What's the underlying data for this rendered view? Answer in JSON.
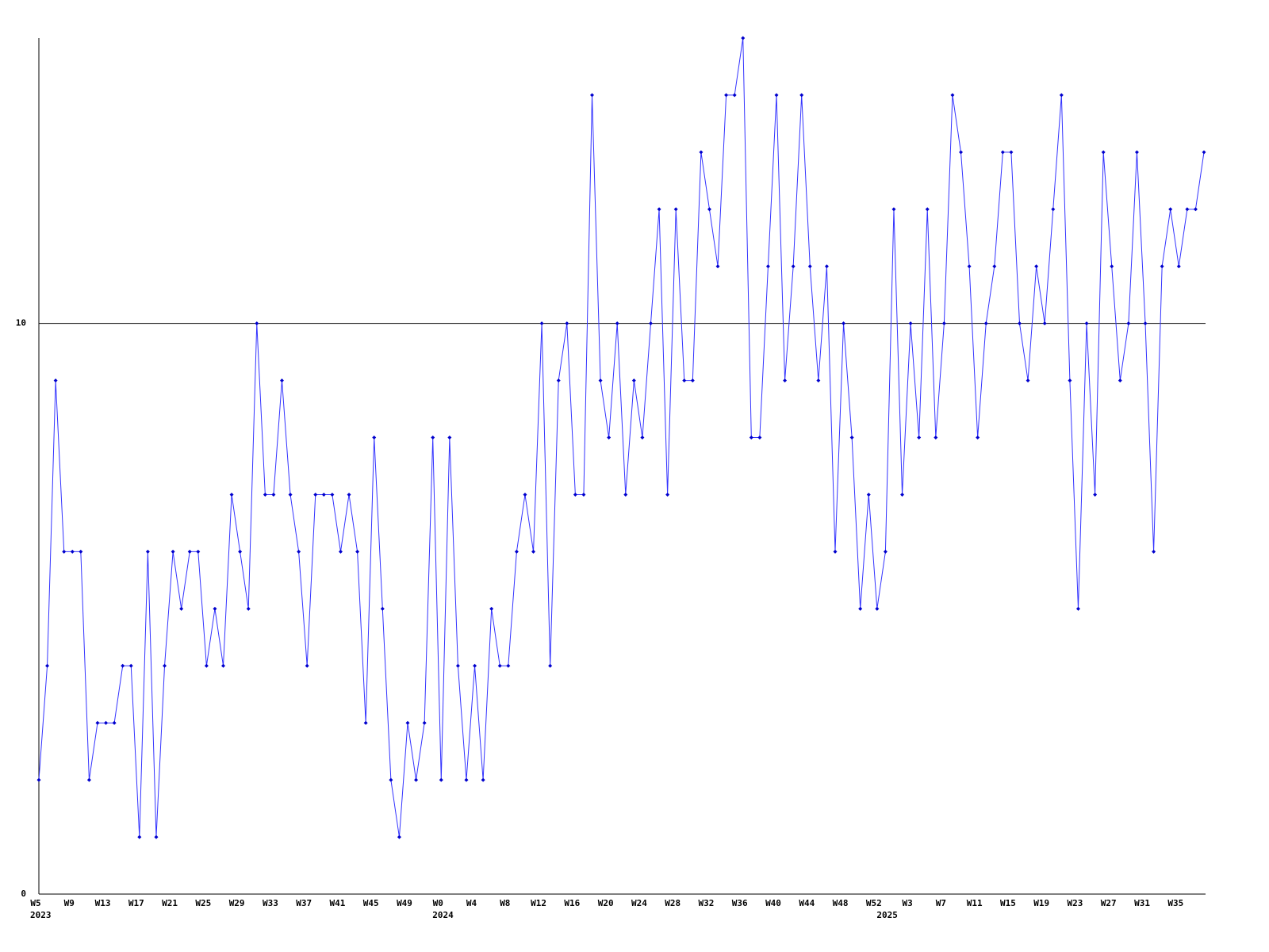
{
  "chart_data": {
    "type": "line",
    "categories": [
      "W5",
      null,
      null,
      null,
      "W9",
      null,
      null,
      null,
      "W13",
      null,
      null,
      null,
      "W17",
      null,
      null,
      null,
      "W21",
      null,
      null,
      null,
      "W25",
      null,
      null,
      null,
      "W29",
      null,
      null,
      null,
      "W33",
      null,
      null,
      null,
      "W37",
      null,
      null,
      null,
      "W41",
      null,
      null,
      null,
      "W45",
      null,
      null,
      null,
      "W49",
      null,
      null,
      null,
      "W0",
      null,
      null,
      null,
      "W4",
      null,
      null,
      null,
      "W8",
      null,
      null,
      null,
      "W12",
      null,
      null,
      null,
      "W16",
      null,
      null,
      null,
      "W20",
      null,
      null,
      null,
      "W24",
      null,
      null,
      null,
      "W28",
      null,
      null,
      null,
      "W32",
      null,
      null,
      null,
      "W36",
      null,
      null,
      null,
      "W40",
      null,
      null,
      null,
      "W44",
      null,
      null,
      null,
      "W48",
      null,
      null,
      null,
      "W52",
      null,
      null,
      null,
      "W3",
      null,
      null,
      null,
      "W7",
      null,
      null,
      null,
      "W11",
      null,
      null,
      null,
      "W15",
      null,
      null,
      null,
      "W19",
      null,
      null,
      null,
      "W23",
      null,
      null,
      null,
      "W27",
      null,
      null,
      null,
      "W31",
      null,
      null,
      null,
      "W35",
      null,
      null,
      null
    ],
    "category_years": [
      "2023",
      null,
      null,
      null,
      null,
      null,
      null,
      null,
      null,
      null,
      null,
      null,
      null,
      null,
      null,
      null,
      null,
      null,
      null,
      null,
      null,
      null,
      null,
      null,
      null,
      null,
      null,
      null,
      null,
      null,
      null,
      null,
      null,
      null,
      null,
      null,
      null,
      null,
      null,
      null,
      null,
      null,
      null,
      null,
      null,
      null,
      null,
      null,
      "2024",
      null,
      null,
      null,
      null,
      null,
      null,
      null,
      null,
      null,
      null,
      null,
      null,
      null,
      null,
      null,
      null,
      null,
      null,
      null,
      null,
      null,
      null,
      null,
      null,
      null,
      null,
      null,
      null,
      null,
      null,
      null,
      null,
      null,
      null,
      null,
      null,
      null,
      null,
      null,
      null,
      null,
      null,
      null,
      null,
      null,
      null,
      null,
      null,
      null,
      null,
      null,
      null,
      "2025",
      null,
      null,
      null,
      null,
      null,
      null,
      null,
      null,
      null,
      null,
      null,
      null,
      null,
      null,
      null,
      null,
      null,
      null,
      null,
      null,
      null,
      null,
      null,
      null,
      null,
      null,
      null,
      null,
      null,
      null,
      null,
      null,
      null,
      null,
      null,
      null,
      null,
      null
    ],
    "series": [
      {
        "color": "#3333ff",
        "marker_color": "#0000cc",
        "values": [
          2,
          4,
          9,
          6,
          6,
          6,
          2,
          3,
          3,
          3,
          4,
          4,
          1,
          6,
          1,
          4,
          6,
          5,
          6,
          6,
          4,
          5,
          4,
          7,
          6,
          5,
          10,
          7,
          7,
          9,
          7,
          6,
          4,
          7,
          7,
          7,
          6,
          7,
          6,
          3,
          8,
          5,
          2,
          1,
          3,
          2,
          3,
          8,
          2,
          8,
          4,
          2,
          4,
          2,
          5,
          4,
          4,
          6,
          7,
          6,
          10,
          4,
          9,
          10,
          7,
          7,
          14,
          9,
          8,
          10,
          7,
          9,
          8,
          10,
          12,
          7,
          12,
          9,
          9,
          13,
          12,
          11,
          14,
          14,
          15,
          8,
          8,
          11,
          14,
          9,
          11,
          14,
          11,
          9,
          11,
          6,
          10,
          8,
          5,
          7,
          5,
          6,
          12,
          7,
          10,
          8,
          12,
          8,
          10,
          14,
          13,
          11,
          8,
          10,
          11,
          13,
          13,
          10,
          9,
          11,
          10,
          12,
          14,
          9,
          5,
          10,
          7,
          13,
          11,
          9,
          10,
          13,
          10,
          6,
          11,
          12,
          11,
          12,
          12,
          13
        ]
      }
    ],
    "ylim": [
      0,
      15
    ],
    "yticks": [
      0,
      10
    ],
    "grid": true
  }
}
